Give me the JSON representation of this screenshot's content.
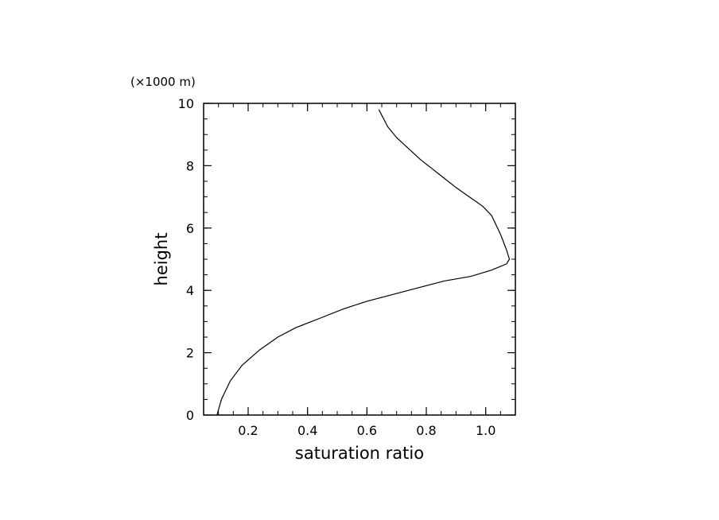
{
  "chart_data": {
    "type": "line",
    "xlabel": "saturation ratio",
    "ylabel": "height",
    "y_unit_label": "(×1000 m)",
    "xlim": [
      0.05,
      1.1
    ],
    "ylim": [
      0,
      10
    ],
    "x_ticks": [
      0.2,
      0.4,
      0.6,
      0.8,
      1.0
    ],
    "x_tick_labels": [
      "0.2",
      "0.4",
      "0.6",
      "0.8",
      "1.0"
    ],
    "y_ticks": [
      0,
      2,
      4,
      6,
      8,
      10
    ],
    "y_tick_labels": [
      "0",
      "2",
      "4",
      "6",
      "8",
      "10"
    ],
    "grid": false,
    "series": [
      {
        "x": [
          0.095,
          0.11,
          0.14,
          0.18,
          0.24,
          0.3,
          0.36,
          0.44,
          0.52,
          0.6,
          0.68,
          0.76,
          0.86,
          0.95,
          1.02,
          1.07,
          1.08,
          1.07,
          1.05,
          1.02,
          0.99,
          0.96,
          0.93,
          0.9,
          0.86,
          0.82,
          0.78,
          0.74,
          0.7,
          0.67,
          0.64
        ],
        "y": [
          0.0,
          0.5,
          1.1,
          1.6,
          2.1,
          2.5,
          2.8,
          3.1,
          3.4,
          3.65,
          3.85,
          4.05,
          4.3,
          4.45,
          4.65,
          4.85,
          5.0,
          5.3,
          5.8,
          6.4,
          6.7,
          6.9,
          7.1,
          7.3,
          7.6,
          7.9,
          8.2,
          8.55,
          8.9,
          9.25,
          9.8
        ]
      }
    ]
  }
}
